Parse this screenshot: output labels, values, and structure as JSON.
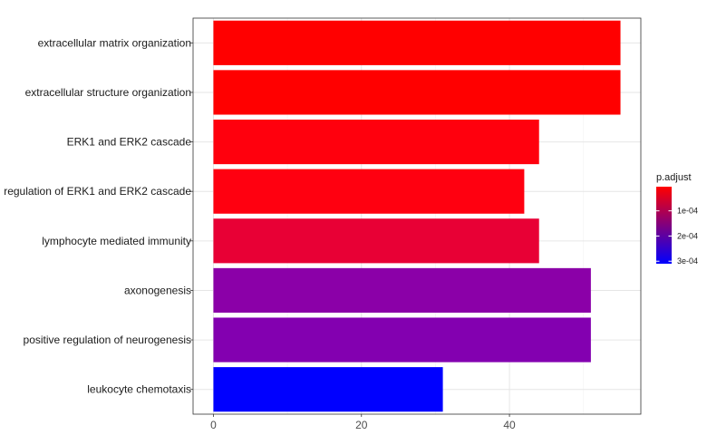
{
  "chart_data": {
    "type": "bar",
    "orientation": "horizontal",
    "categories": [
      "extracellular matrix organization",
      "extracellular structure organization",
      "ERK1 and ERK2 cascade",
      "regulation of ERK1 and ERK2 cascade",
      "lymphocyte mediated immunity",
      "axonogenesis",
      "positive regulation of neurogenesis",
      "leukocyte chemotaxis"
    ],
    "values": [
      55,
      55,
      44,
      42,
      44,
      51,
      51,
      31
    ],
    "p_adjust": [
      4e-06,
      5e-06,
      8e-06,
      1e-05,
      4e-05,
      0.00022,
      0.00023,
      0.00031
    ],
    "colors": [
      "#FF0000",
      "#FF0000",
      "#FF000D",
      "#FF0010",
      "#E80035",
      "#8B00A8",
      "#8300B0",
      "#0000FF"
    ],
    "xlim": [
      -2.75,
      57.75
    ],
    "x_ticks": [
      0,
      20,
      40
    ],
    "x_tick_labels": [
      "0",
      "20",
      "40"
    ],
    "xlabel": "",
    "ylabel": "",
    "grid": true,
    "legend": {
      "title": "p.adjust",
      "position": "right",
      "range": [
        4e-06,
        0.00031
      ],
      "ticks": [
        0.0001,
        0.0002,
        0.0003
      ],
      "tick_labels": [
        "1e-04",
        "2e-04",
        "3e-04"
      ],
      "low_color": "#FF0000",
      "high_color": "#0000FF"
    }
  }
}
